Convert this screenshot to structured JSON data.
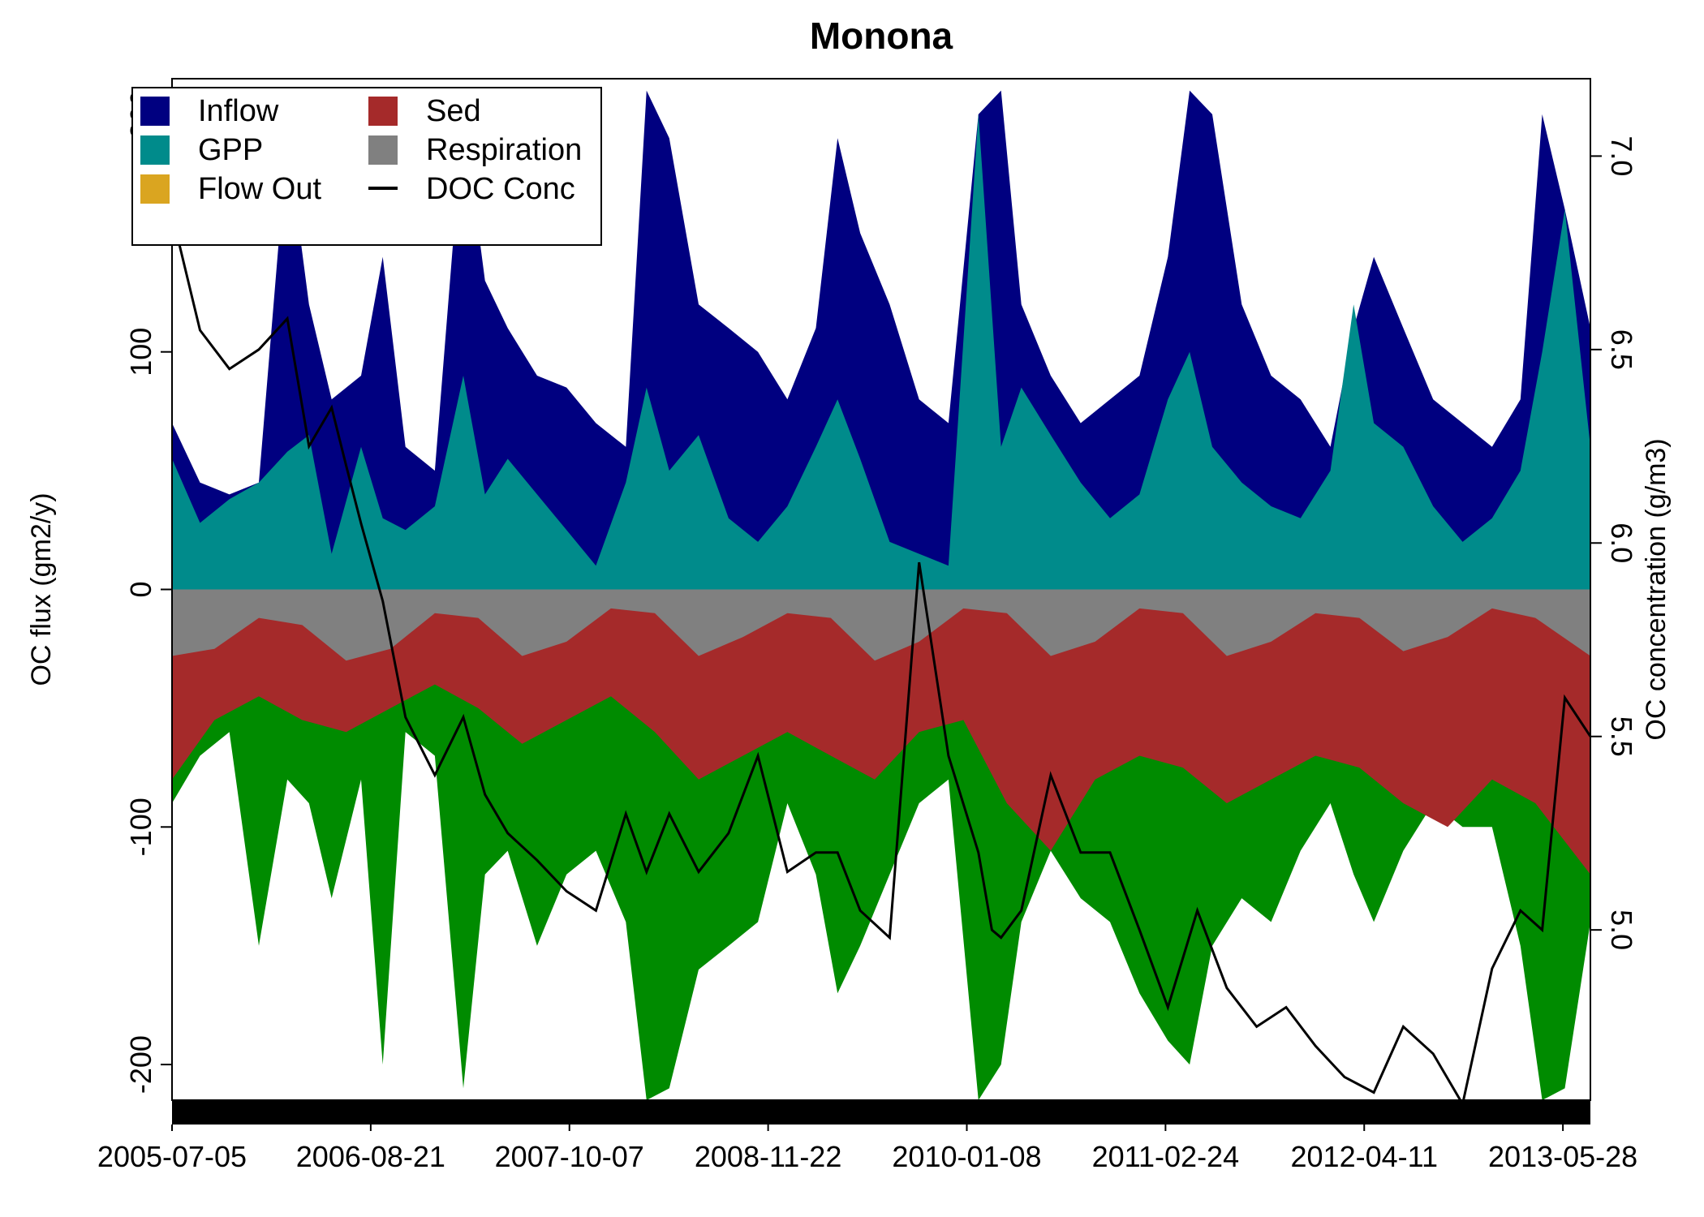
{
  "chart_data": {
    "type": "area",
    "title": "Monona",
    "ylabel_left": "OC flux (gm2/y)",
    "ylabel_right": "OC concentration (g/m3)",
    "xlabel": "",
    "ylim_left": [
      -215,
      215
    ],
    "ylim_right": [
      4.56,
      7.2
    ],
    "yticks_left": [
      -200,
      -100,
      0,
      100,
      200
    ],
    "yticks_left_labels": [
      "-200",
      "-100",
      "0",
      "100",
      "200"
    ],
    "yticks_right": [
      5.0,
      5.5,
      6.0,
      6.5,
      7.0
    ],
    "yticks_right_labels": [
      "5.0",
      "5.5",
      "6.0",
      "6.5",
      "7.0"
    ],
    "x_start": "2005-07-05",
    "x_end": "2013-07-24",
    "x_tick_labels": [
      "2005-07-05",
      "2006-08-21",
      "2007-10-07",
      "2008-11-22",
      "2010-01-08",
      "2011-02-24",
      "2012-04-11",
      "2013-05-28"
    ],
    "legend_position": "top-left",
    "legend_columns": 2,
    "legend": [
      {
        "name": "Inflow",
        "color": "#000080",
        "kind": "box"
      },
      {
        "name": "Sed",
        "color": "#A52A2A",
        "kind": "box"
      },
      {
        "name": "GPP",
        "color": "#008B8B",
        "kind": "box"
      },
      {
        "name": "Respiration",
        "color": "#808080",
        "kind": "box"
      },
      {
        "name": "Flow Out",
        "color": "#DAA520",
        "kind": "box"
      },
      {
        "name": "DOC Conc",
        "color": "#000000",
        "kind": "line"
      }
    ],
    "colors": {
      "inflow": "#000080",
      "gpp": "#008B8B",
      "flow_out": "#DAA520",
      "sed": "#A52A2A",
      "respiration": "#808080",
      "outflow_green": "#008B00",
      "doc": "#000000"
    },
    "series": [
      {
        "name": "Inflow",
        "axis": "left",
        "x": [
          "2005-07-05",
          "2005-09-01",
          "2005-11-01",
          "2006-01-01",
          "2006-03-01",
          "2006-04-15",
          "2006-06-01",
          "2006-08-01",
          "2006-09-15",
          "2006-11-01",
          "2007-01-01",
          "2007-03-01",
          "2007-04-15",
          "2007-06-01",
          "2007-08-01",
          "2007-10-01",
          "2007-12-01",
          "2008-02-01",
          "2008-03-15",
          "2008-05-01",
          "2008-07-01",
          "2008-09-01",
          "2008-11-01",
          "2009-01-01",
          "2009-03-01",
          "2009-04-15",
          "2009-06-01",
          "2009-08-01",
          "2009-10-01",
          "2009-12-01",
          "2010-02-01",
          "2010-03-20",
          "2010-05-01",
          "2010-07-01",
          "2010-09-01",
          "2010-11-01",
          "2011-01-01",
          "2011-03-01",
          "2011-04-15",
          "2011-06-01",
          "2011-08-01",
          "2011-10-01",
          "2011-12-01",
          "2012-02-01",
          "2012-03-20",
          "2012-05-01",
          "2012-07-01",
          "2012-09-01",
          "2012-11-01",
          "2013-01-01",
          "2013-03-01",
          "2013-04-15",
          "2013-06-01",
          "2013-07-24"
        ],
        "values": [
          70,
          45,
          40,
          45,
          190,
          120,
          80,
          90,
          140,
          60,
          50,
          200,
          130,
          110,
          90,
          85,
          70,
          60,
          210,
          190,
          120,
          110,
          100,
          80,
          110,
          190,
          150,
          120,
          80,
          70,
          200,
          210,
          120,
          90,
          70,
          80,
          90,
          140,
          210,
          200,
          120,
          90,
          80,
          60,
          110,
          140,
          110,
          80,
          70,
          60,
          80,
          200,
          160,
          110
        ]
      },
      {
        "name": "GPP",
        "axis": "left",
        "x": [
          "2005-07-05",
          "2005-09-01",
          "2005-11-01",
          "2006-01-01",
          "2006-03-01",
          "2006-04-15",
          "2006-06-01",
          "2006-08-01",
          "2006-09-15",
          "2006-11-01",
          "2007-01-01",
          "2007-03-01",
          "2007-04-15",
          "2007-06-01",
          "2007-08-01",
          "2007-10-01",
          "2007-12-01",
          "2008-02-01",
          "2008-03-15",
          "2008-05-01",
          "2008-07-01",
          "2008-09-01",
          "2008-11-01",
          "2009-01-01",
          "2009-03-01",
          "2009-04-15",
          "2009-06-01",
          "2009-08-01",
          "2009-10-01",
          "2009-12-01",
          "2010-02-01",
          "2010-03-20",
          "2010-05-01",
          "2010-07-01",
          "2010-09-01",
          "2010-11-01",
          "2011-01-01",
          "2011-03-01",
          "2011-04-15",
          "2011-06-01",
          "2011-08-01",
          "2011-10-01",
          "2011-12-01",
          "2012-02-01",
          "2012-03-20",
          "2012-05-01",
          "2012-07-01",
          "2012-09-01",
          "2012-11-01",
          "2013-01-01",
          "2013-03-01",
          "2013-04-15",
          "2013-06-01",
          "2013-07-24"
        ],
        "values": [
          55,
          28,
          38,
          45,
          58,
          65,
          15,
          60,
          30,
          25,
          35,
          90,
          40,
          55,
          40,
          25,
          10,
          45,
          85,
          50,
          65,
          30,
          20,
          35,
          60,
          80,
          55,
          20,
          15,
          10,
          200,
          60,
          85,
          65,
          45,
          30,
          40,
          80,
          100,
          60,
          45,
          35,
          30,
          50,
          120,
          70,
          60,
          35,
          20,
          30,
          50,
          100,
          160,
          60
        ]
      },
      {
        "name": "Flow Out",
        "axis": "left",
        "x": [
          "2005-07-05",
          "2013-07-24"
        ],
        "values": [
          0,
          0
        ]
      },
      {
        "name": "Respiration",
        "axis": "left",
        "x": [
          "2005-07-05",
          "2005-10-01",
          "2006-01-01",
          "2006-04-01",
          "2006-07-01",
          "2006-10-01",
          "2007-01-01",
          "2007-04-01",
          "2007-07-01",
          "2007-10-01",
          "2008-01-01",
          "2008-04-01",
          "2008-07-01",
          "2008-10-01",
          "2009-01-01",
          "2009-04-01",
          "2009-07-01",
          "2009-10-01",
          "2010-01-01",
          "2010-04-01",
          "2010-07-01",
          "2010-10-01",
          "2011-01-01",
          "2011-04-01",
          "2011-07-01",
          "2011-10-01",
          "2012-01-01",
          "2012-04-01",
          "2012-07-01",
          "2012-10-01",
          "2013-01-01",
          "2013-04-01",
          "2013-07-24"
        ],
        "values": [
          -28,
          -25,
          -12,
          -15,
          -30,
          -25,
          -10,
          -12,
          -28,
          -22,
          -8,
          -10,
          -28,
          -20,
          -10,
          -12,
          -30,
          -22,
          -8,
          -10,
          -28,
          -22,
          -8,
          -10,
          -28,
          -22,
          -10,
          -12,
          -26,
          -20,
          -8,
          -12,
          -28
        ]
      },
      {
        "name": "Sed",
        "axis": "left",
        "x": [
          "2005-07-05",
          "2005-10-01",
          "2006-01-01",
          "2006-04-01",
          "2006-07-01",
          "2006-10-01",
          "2007-01-01",
          "2007-04-01",
          "2007-07-01",
          "2007-10-01",
          "2008-01-01",
          "2008-04-01",
          "2008-07-01",
          "2008-10-01",
          "2009-01-01",
          "2009-04-01",
          "2009-07-01",
          "2009-10-01",
          "2010-01-01",
          "2010-04-01",
          "2010-07-01",
          "2010-10-01",
          "2011-01-01",
          "2011-04-01",
          "2011-07-01",
          "2011-10-01",
          "2012-01-01",
          "2012-04-01",
          "2012-07-01",
          "2012-10-01",
          "2013-01-01",
          "2013-04-01",
          "2013-07-24"
        ],
        "values": [
          -80,
          -55,
          -45,
          -55,
          -60,
          -50,
          -40,
          -50,
          -65,
          -55,
          -45,
          -60,
          -80,
          -70,
          -60,
          -70,
          -80,
          -60,
          -55,
          -90,
          -110,
          -80,
          -70,
          -75,
          -90,
          -80,
          -70,
          -75,
          -90,
          -100,
          -80,
          -90,
          -120
        ]
      },
      {
        "name": "Outflow",
        "axis": "left",
        "x": [
          "2005-07-05",
          "2005-09-01",
          "2005-11-01",
          "2006-01-01",
          "2006-03-01",
          "2006-04-15",
          "2006-06-01",
          "2006-08-01",
          "2006-09-15",
          "2006-11-01",
          "2007-01-01",
          "2007-03-01",
          "2007-04-15",
          "2007-06-01",
          "2007-08-01",
          "2007-10-01",
          "2007-12-01",
          "2008-02-01",
          "2008-03-15",
          "2008-05-01",
          "2008-07-01",
          "2008-09-01",
          "2008-11-01",
          "2009-01-01",
          "2009-03-01",
          "2009-04-15",
          "2009-06-01",
          "2009-08-01",
          "2009-10-01",
          "2009-12-01",
          "2010-02-01",
          "2010-03-20",
          "2010-05-01",
          "2010-07-01",
          "2010-09-01",
          "2010-11-01",
          "2011-01-01",
          "2011-03-01",
          "2011-04-15",
          "2011-06-01",
          "2011-08-01",
          "2011-10-01",
          "2011-12-01",
          "2012-02-01",
          "2012-03-20",
          "2012-05-01",
          "2012-07-01",
          "2012-09-01",
          "2012-11-01",
          "2013-01-01",
          "2013-03-01",
          "2013-04-15",
          "2013-06-01",
          "2013-07-24"
        ],
        "values": [
          -90,
          -70,
          -60,
          -150,
          -80,
          -90,
          -130,
          -80,
          -200,
          -60,
          -70,
          -210,
          -120,
          -110,
          -150,
          -120,
          -110,
          -140,
          -215,
          -210,
          -160,
          -150,
          -140,
          -90,
          -120,
          -170,
          -150,
          -120,
          -90,
          -80,
          -215,
          -200,
          -140,
          -110,
          -130,
          -140,
          -170,
          -190,
          -200,
          -150,
          -130,
          -140,
          -110,
          -90,
          -120,
          -140,
          -110,
          -90,
          -100,
          -100,
          -150,
          -215,
          -210,
          -140
        ]
      },
      {
        "name": "DOC Conc",
        "axis": "right",
        "x": [
          "2005-07-05",
          "2005-09-01",
          "2005-11-01",
          "2006-01-01",
          "2006-03-01",
          "2006-04-15",
          "2006-06-01",
          "2006-07-01",
          "2006-08-01",
          "2006-09-15",
          "2006-11-01",
          "2007-01-01",
          "2007-03-01",
          "2007-04-15",
          "2007-06-01",
          "2007-08-01",
          "2007-10-01",
          "2007-12-01",
          "2008-02-01",
          "2008-03-15",
          "2008-05-01",
          "2008-07-01",
          "2008-09-01",
          "2008-11-01",
          "2009-01-01",
          "2009-03-01",
          "2009-04-15",
          "2009-06-01",
          "2009-08-01",
          "2009-10-01",
          "2009-12-01",
          "2010-02-01",
          "2010-03-01",
          "2010-03-20",
          "2010-05-01",
          "2010-07-01",
          "2010-09-01",
          "2010-11-01",
          "2011-01-01",
          "2011-03-01",
          "2011-05-01",
          "2011-07-01",
          "2011-09-01",
          "2011-11-01",
          "2012-01-01",
          "2012-03-01",
          "2012-05-01",
          "2012-07-01",
          "2012-09-01",
          "2012-11-01",
          "2013-01-01",
          "2013-03-01",
          "2013-04-15",
          "2013-06-01",
          "2013-07-24"
        ],
        "values": [
          6.85,
          6.55,
          6.45,
          6.5,
          6.58,
          6.25,
          6.35,
          6.2,
          6.05,
          5.85,
          5.55,
          5.4,
          5.55,
          5.35,
          5.25,
          5.18,
          5.1,
          5.05,
          5.3,
          5.15,
          5.3,
          5.15,
          5.25,
          5.45,
          5.15,
          5.2,
          5.2,
          5.05,
          4.98,
          5.95,
          5.45,
          5.2,
          5.0,
          4.98,
          5.05,
          5.4,
          5.2,
          5.2,
          5.0,
          4.8,
          5.05,
          4.85,
          4.75,
          4.8,
          4.7,
          4.62,
          4.58,
          4.75,
          4.68,
          4.55,
          4.9,
          5.05,
          5.0,
          5.6,
          5.5
        ]
      }
    ]
  }
}
